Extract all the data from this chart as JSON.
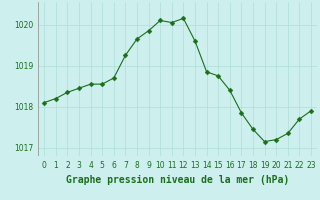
{
  "x": [
    0,
    1,
    2,
    3,
    4,
    5,
    6,
    7,
    8,
    9,
    10,
    11,
    12,
    13,
    14,
    15,
    16,
    17,
    18,
    19,
    20,
    21,
    22,
    23
  ],
  "y": [
    1018.1,
    1018.2,
    1018.35,
    1018.45,
    1018.55,
    1018.55,
    1018.7,
    1019.25,
    1019.65,
    1019.85,
    1020.1,
    1020.05,
    1020.15,
    1019.6,
    1018.85,
    1018.75,
    1018.4,
    1017.85,
    1017.45,
    1017.15,
    1017.2,
    1017.35,
    1017.7,
    1017.9
  ],
  "line_color": "#1a6e1a",
  "marker_size": 2.5,
  "background_color": "#cdf0ee",
  "grid_color": "#b0ddd8",
  "xlabel_text": "Graphe pression niveau de la mer (hPa)",
  "ylim": [
    1016.8,
    1020.55
  ],
  "xlim": [
    -0.5,
    23.5
  ],
  "yticks": [
    1017,
    1018,
    1019,
    1020
  ],
  "xticks": [
    0,
    1,
    2,
    3,
    4,
    5,
    6,
    7,
    8,
    9,
    10,
    11,
    12,
    13,
    14,
    15,
    16,
    17,
    18,
    19,
    20,
    21,
    22,
    23
  ],
  "tick_fontsize": 5.5,
  "xlabel_fontsize": 7.0,
  "label_color": "#1a6e1a"
}
